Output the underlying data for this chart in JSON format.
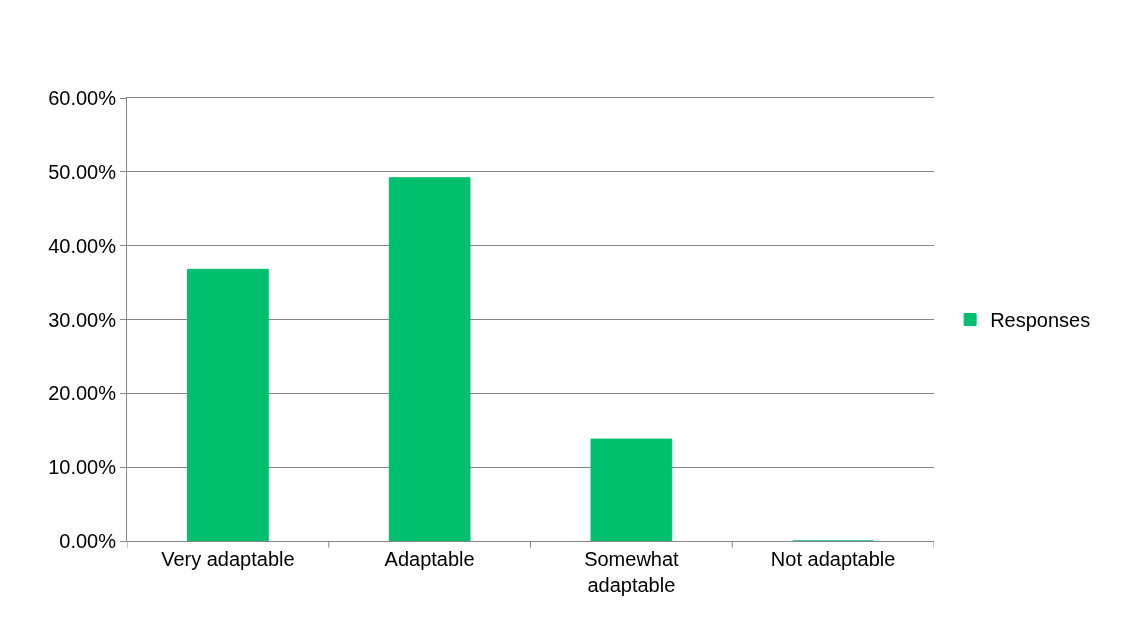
{
  "chart_data": {
    "type": "bar",
    "categories": [
      "Very adaptable",
      "Adaptable",
      "Somewhat adaptable",
      "Not adaptable"
    ],
    "series": [
      {
        "name": "Responses",
        "color": "#00bf6f",
        "values": [
          36.8,
          49.2,
          13.8,
          0
        ]
      }
    ],
    "ylim": [
      0,
      60
    ],
    "yticks": [
      {
        "value": 0,
        "label": "0.00%"
      },
      {
        "value": 10,
        "label": "10.00%"
      },
      {
        "value": 20,
        "label": "20.00%"
      },
      {
        "value": 30,
        "label": "30.00%"
      },
      {
        "value": 40,
        "label": "40.00%"
      },
      {
        "value": 50,
        "label": "50.00%"
      },
      {
        "value": 60,
        "label": "60.00%"
      }
    ],
    "grid": "y",
    "legend": "right"
  }
}
